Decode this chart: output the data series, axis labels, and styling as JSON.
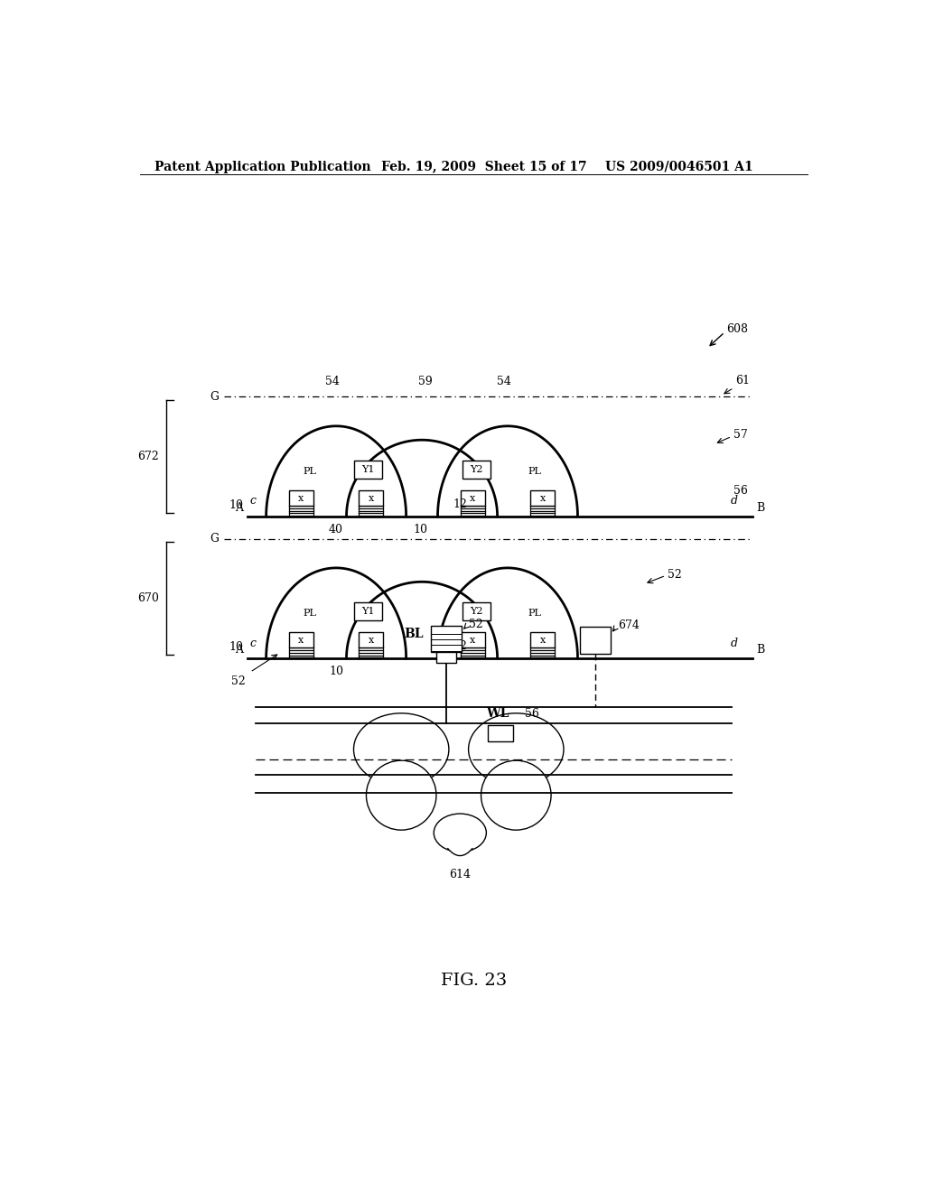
{
  "bg_color": "#ffffff",
  "header_left": "Patent Application Publication",
  "header_mid": "Feb. 19, 2009  Sheet 15 of 17",
  "header_right": "US 2009/0046501 A1",
  "fig_label": "FIG. 23",
  "title_fontsize": 11,
  "body_fontsize": 10
}
